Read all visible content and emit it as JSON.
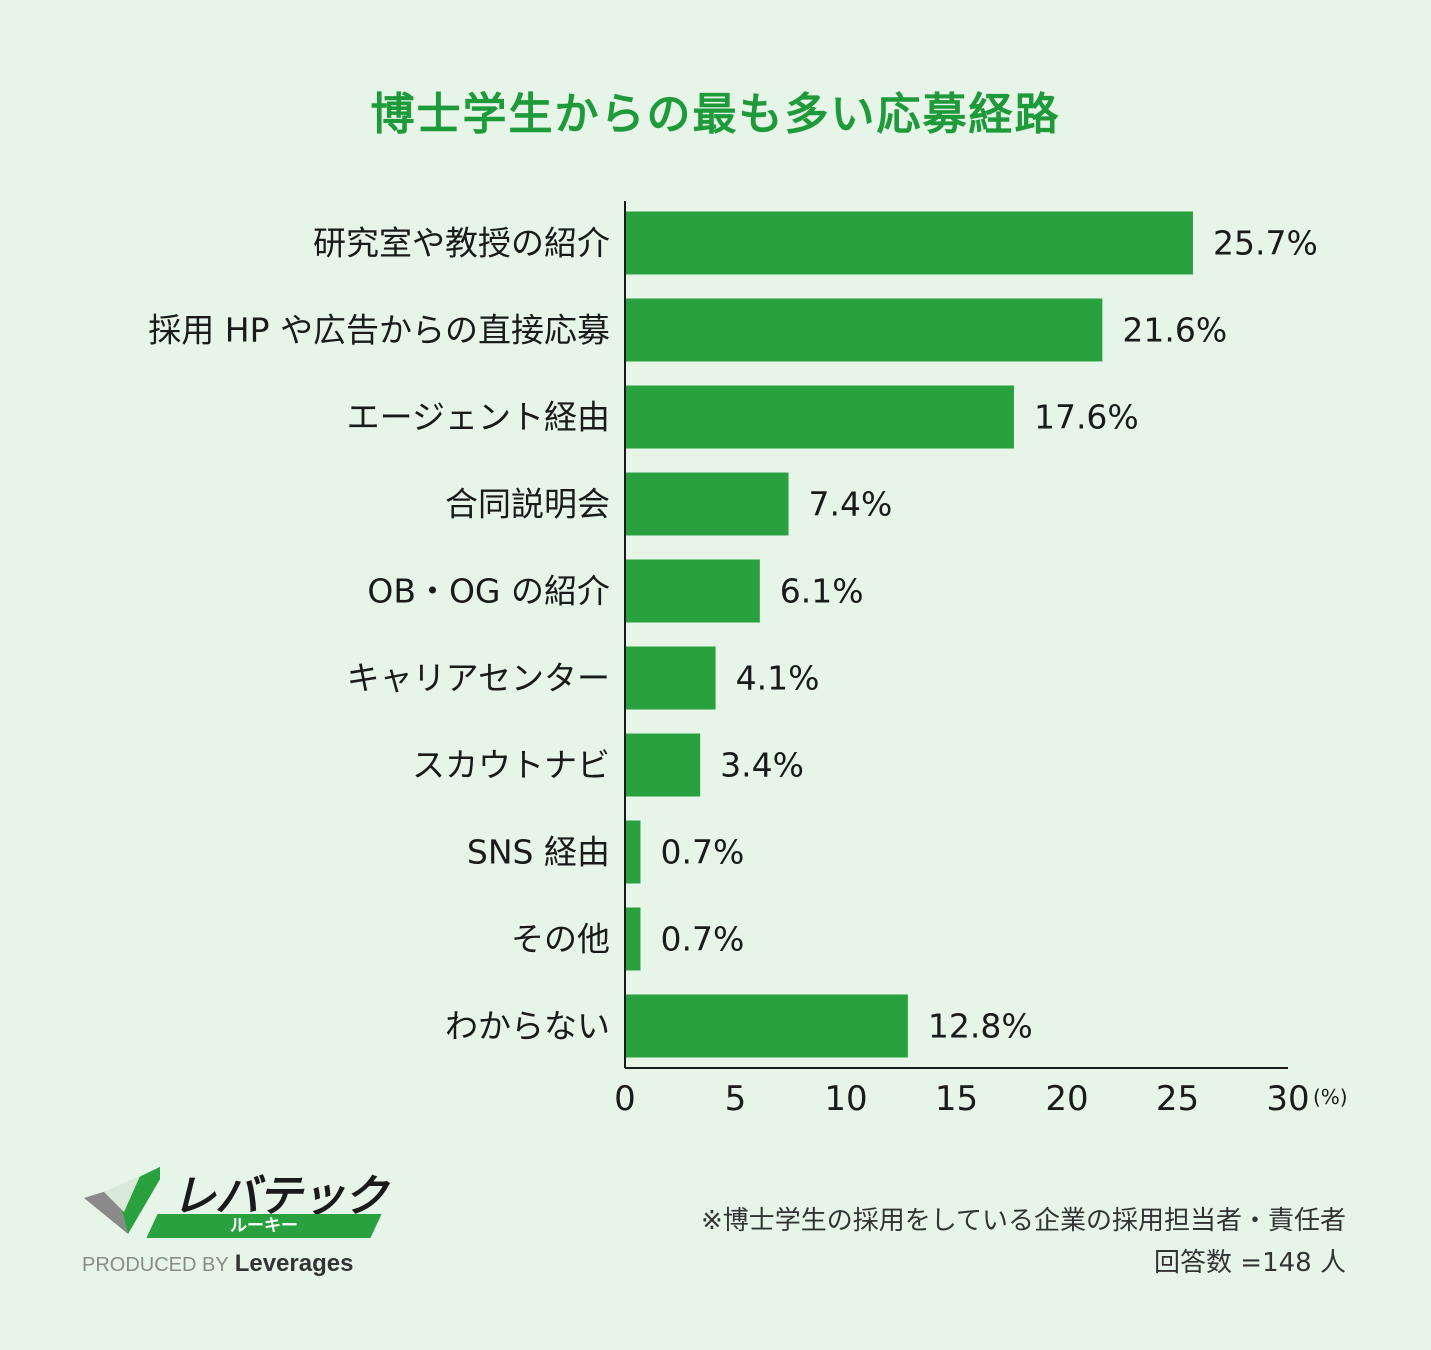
{
  "title": "博士学生からの最も多い応募経路",
  "chart_data": {
    "type": "bar",
    "orientation": "horizontal",
    "title": "博士学生からの最も多い応募経路",
    "categories": [
      "研究室や教授の紹介",
      "採用 HP や広告からの直接応募",
      "エージェント経由",
      "合同説明会",
      "OB・OG の紹介",
      "キャリアセンター",
      "スカウトナビ",
      "SNS 経由",
      "その他",
      "わからない"
    ],
    "values": [
      25.7,
      21.6,
      17.6,
      7.4,
      6.1,
      4.1,
      3.4,
      0.7,
      0.7,
      12.8
    ],
    "value_labels": [
      "25.7%",
      "21.6%",
      "17.6%",
      "7.4%",
      "6.1%",
      "4.1%",
      "3.4%",
      "0.7%",
      "0.7%",
      "12.8%"
    ],
    "xlim": [
      0,
      30
    ],
    "xticks": [
      0,
      5,
      10,
      15,
      20,
      25,
      30
    ],
    "xunit": "(%)",
    "grid": false,
    "color": "#2aa13f"
  },
  "logo": {
    "wordmark": "レバテック",
    "sub": "ルーキー",
    "produced_by": "PRODUCED BY",
    "brand": "Leverages"
  },
  "note": {
    "line1": "※博士学生の採用をしている企業の採用担当者・責任者",
    "line2": "回答数 =148 人"
  }
}
